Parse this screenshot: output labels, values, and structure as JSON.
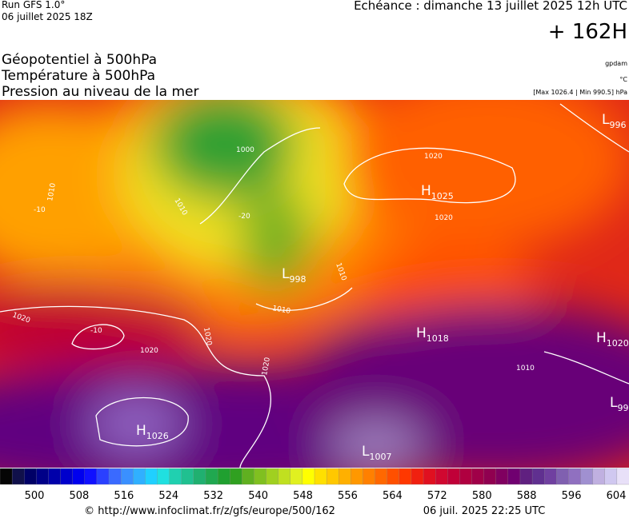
{
  "header": {
    "run": "Run GFS 1.0°",
    "run_date": "06 juillet 2025 18Z",
    "valid": "Echéance : dimanche 13 juillet 2025 12h UTC",
    "lead": "+ 162H"
  },
  "legend": {
    "lines": [
      "Géopotentiel à 500hPa",
      "Température à 500hPa",
      "Pression au niveau de la mer"
    ],
    "units": [
      "gpdam",
      "°C",
      "[Max 1026.4 | Min 990.5] hPa"
    ]
  },
  "map": {
    "centers": [
      {
        "letter": "H",
        "value": "1025"
      },
      {
        "letter": "L",
        "value": "998"
      },
      {
        "letter": "H",
        "value": "1018"
      },
      {
        "letter": "H",
        "value": "1020"
      },
      {
        "letter": "L",
        "value": "996"
      },
      {
        "letter": "L",
        "value": "99"
      },
      {
        "letter": "H",
        "value": "1026"
      },
      {
        "letter": "L",
        "value": "1007"
      }
    ],
    "isobar_labels": [
      "1020",
      "1000",
      "1010",
      "1010",
      "1020",
      "1020",
      "1020",
      "1020",
      "1020",
      "1010",
      "1010",
      "1010"
    ],
    "temperature_labels": [
      "-20",
      "-10",
      "-10"
    ]
  },
  "colorbar": {
    "ticks": [
      500,
      508,
      516,
      524,
      532,
      540,
      548,
      556,
      564,
      572,
      580,
      588,
      596,
      604
    ],
    "colors": [
      "#050505",
      "#10104a",
      "#000066",
      "#000088",
      "#0000aa",
      "#0000cc",
      "#0000ee",
      "#1010ff",
      "#2a40ff",
      "#3a6aff",
      "#3a90ff",
      "#30b0ff",
      "#20d0ff",
      "#20e0e0",
      "#20d0b0",
      "#20c090",
      "#20b070",
      "#20a850",
      "#20a030",
      "#30a020",
      "#60b020",
      "#80c020",
      "#a0d020",
      "#c0e020",
      "#e0f020",
      "#ffff00",
      "#ffe000",
      "#ffc800",
      "#ffb000",
      "#ff9800",
      "#ff8000",
      "#ff6800",
      "#ff5000",
      "#ff3800",
      "#f02010",
      "#e01020",
      "#d00830",
      "#c00038",
      "#b00040",
      "#a00048",
      "#900050",
      "#800060",
      "#700070",
      "#602080",
      "#603090",
      "#7040a0",
      "#8060b0",
      "#9070c0",
      "#a090d0",
      "#c0b0e0",
      "#d0c8f0",
      "#e8e0f8"
    ]
  },
  "footer": {
    "url": "© http://www.infoclimat.fr/z/gfs/europe/500/162",
    "stamp": "06 juil. 2025 22:25 UTC"
  }
}
